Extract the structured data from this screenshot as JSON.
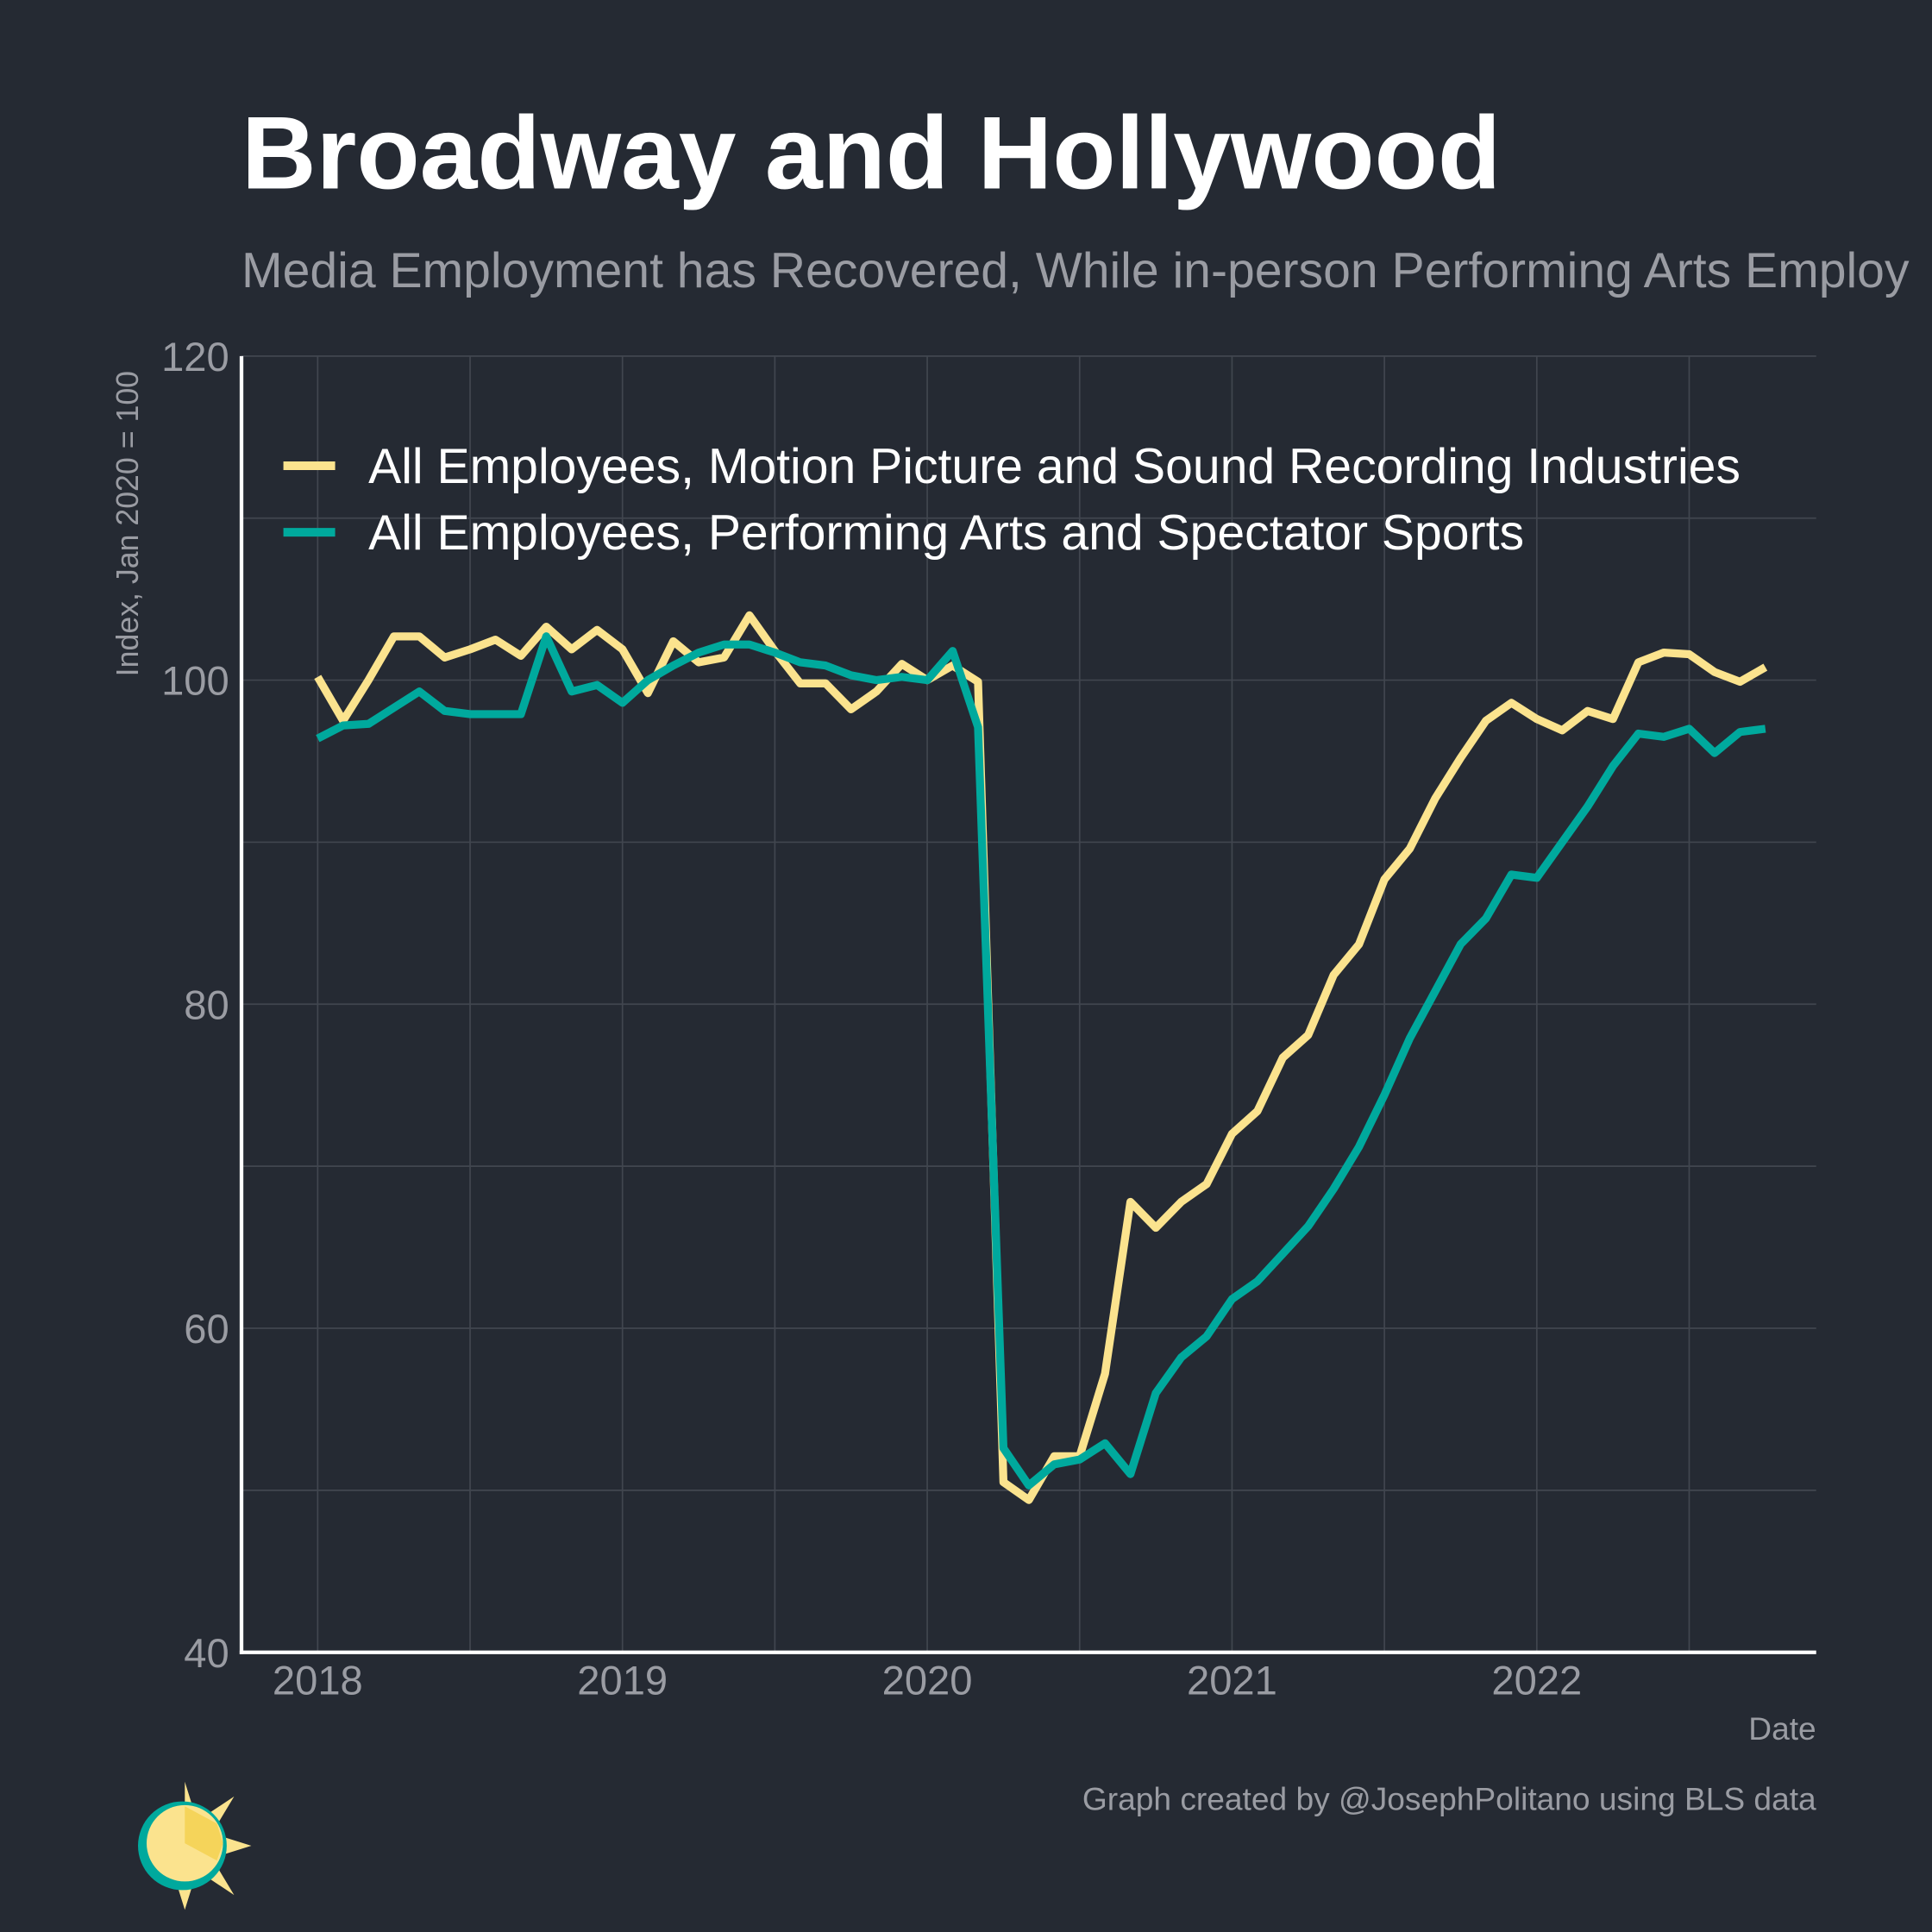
{
  "chart_data": {
    "type": "line",
    "title": "Broadway and Hollywood",
    "subtitle": "Media Employment has Recovered, While in-person Performing Arts Employ",
    "y_label": "Index, Jan 2020 = 100",
    "x_label": "Date",
    "caption": "Graph created by @JosephPolitano using BLS data",
    "x": [
      "2018-01",
      "2018-02",
      "2018-03",
      "2018-04",
      "2018-05",
      "2018-06",
      "2018-07",
      "2018-08",
      "2018-09",
      "2018-10",
      "2018-11",
      "2018-12",
      "2019-01",
      "2019-02",
      "2019-03",
      "2019-04",
      "2019-05",
      "2019-06",
      "2019-07",
      "2019-08",
      "2019-09",
      "2019-10",
      "2019-11",
      "2019-12",
      "2020-01",
      "2020-02",
      "2020-03",
      "2020-04",
      "2020-05",
      "2020-06",
      "2020-07",
      "2020-08",
      "2020-09",
      "2020-10",
      "2020-11",
      "2020-12",
      "2021-01",
      "2021-02",
      "2021-03",
      "2021-04",
      "2021-05",
      "2021-06",
      "2021-07",
      "2021-08",
      "2021-09",
      "2021-10",
      "2021-11",
      "2021-12",
      "2022-01",
      "2022-02",
      "2022-03",
      "2022-04",
      "2022-05",
      "2022-06",
      "2022-07",
      "2022-08",
      "2022-09",
      "2022-10"
    ],
    "series": [
      {
        "name": "All Employees, Motion Picture and Sound Recording Industries",
        "color": "#fbe38e",
        "values": [
          100.2,
          97.5,
          100,
          102.7,
          102.7,
          101.4,
          101.9,
          102.5,
          101.5,
          103.3,
          101.9,
          103.1,
          101.9,
          99.2,
          102.4,
          101.1,
          101.4,
          104,
          101.8,
          99.8,
          99.8,
          98.2,
          99.3,
          101,
          100,
          100.9,
          99.9,
          50.5,
          49.4,
          52.1,
          52.1,
          57.2,
          67.8,
          66.2,
          67.8,
          68.9,
          72,
          73.4,
          76.7,
          78.1,
          81.8,
          83.7,
          87.7,
          89.6,
          92.7,
          95.2,
          97.5,
          98.6,
          97.6,
          96.9,
          98.1,
          97.6,
          101.1,
          101.7,
          101.6,
          100.5,
          99.9,
          100.8
        ]
      },
      {
        "name": "All Employees, Performing Arts and Spectator Sports",
        "color": "#00a99d",
        "values": [
          96.4,
          97.2,
          97.3,
          98.3,
          99.3,
          98.1,
          97.9,
          97.9,
          97.9,
          102.7,
          99.3,
          99.7,
          98.6,
          100,
          100.9,
          101.7,
          102.2,
          102.2,
          101.7,
          101.1,
          100.9,
          100.3,
          100,
          100.2,
          100,
          101.8,
          97.1,
          52.6,
          50.3,
          51.6,
          51.9,
          52.9,
          51,
          56,
          58.2,
          59.5,
          61.8,
          62.9,
          64.6,
          66.3,
          68.6,
          71.2,
          74.4,
          77.9,
          80.8,
          83.7,
          85.3,
          88,
          87.8,
          90,
          92.2,
          94.7,
          96.7,
          96.5,
          97,
          95.5,
          96.8,
          97
        ]
      }
    ],
    "xlim": [
      "2017-10",
      "2022-12"
    ],
    "xticks": [
      {
        "value": "2018-01",
        "label": "2018"
      },
      {
        "value": "2019-01",
        "label": "2019"
      },
      {
        "value": "2020-01",
        "label": "2020"
      },
      {
        "value": "2021-01",
        "label": "2021"
      },
      {
        "value": "2022-01",
        "label": "2022"
      }
    ],
    "ylim": [
      40,
      120
    ],
    "yticks": [
      40,
      60,
      80,
      100,
      120
    ],
    "grid": true,
    "legend": "top-left"
  }
}
